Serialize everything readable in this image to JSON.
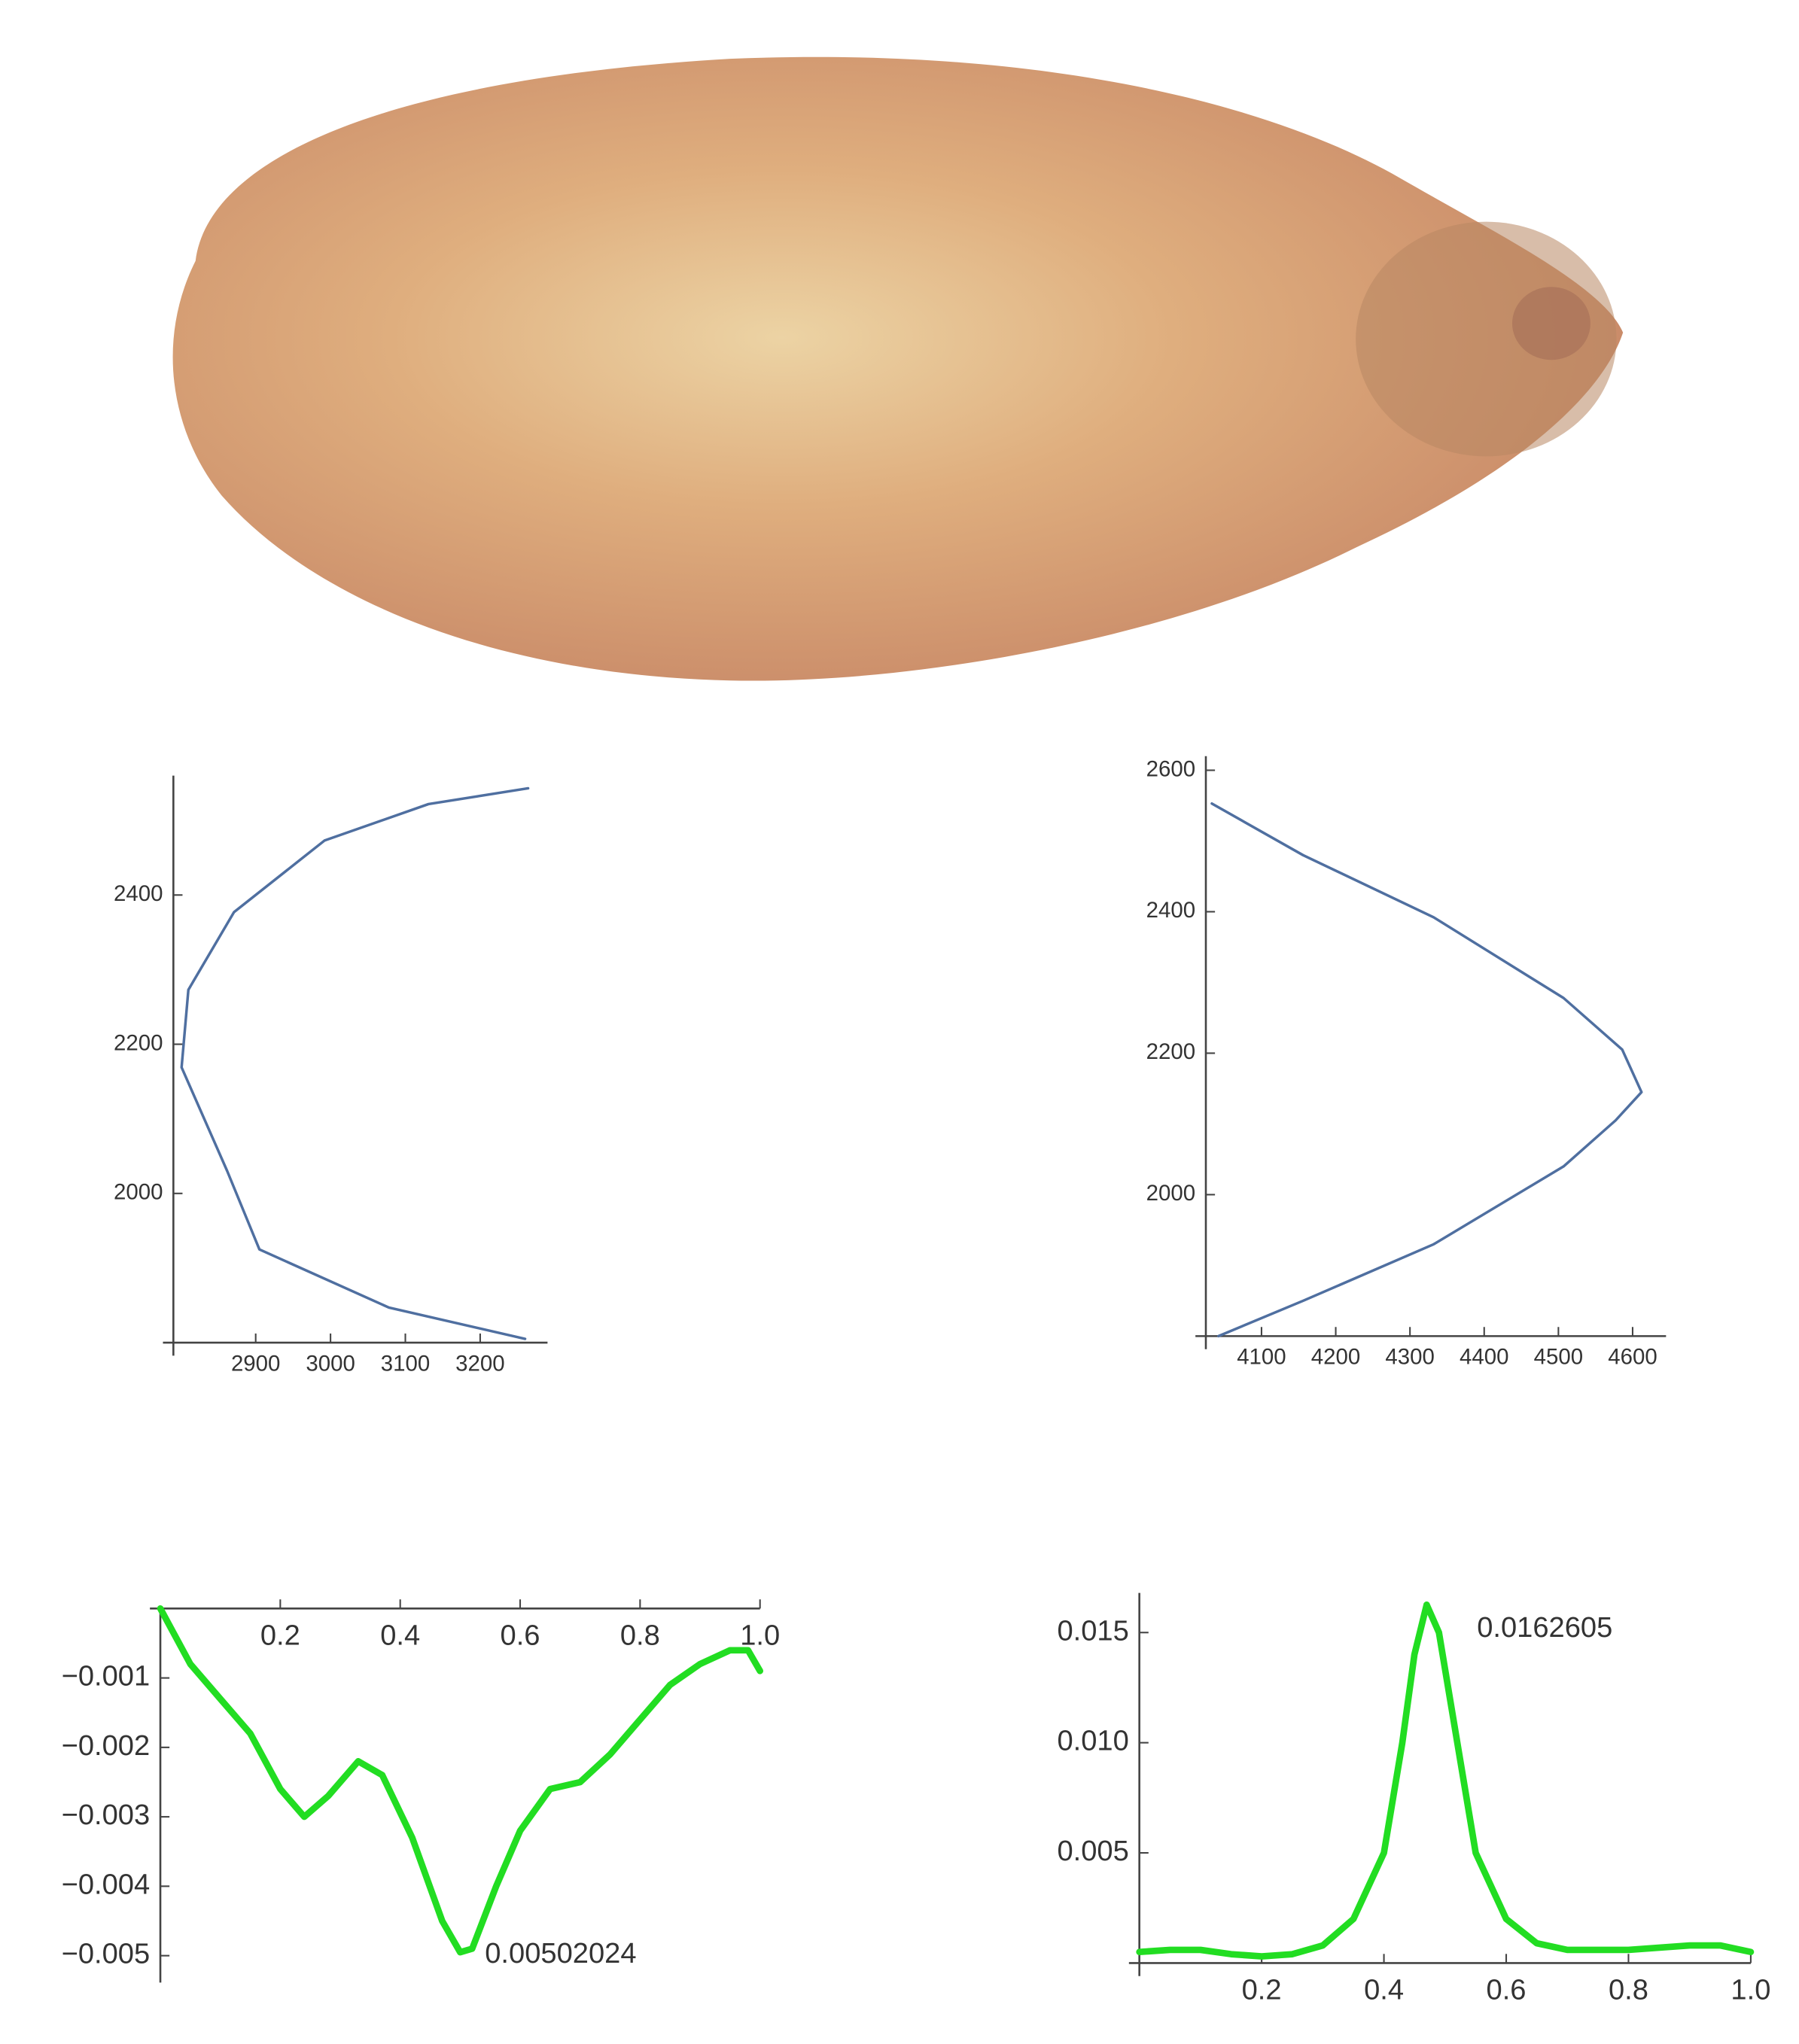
{
  "chart_data": [
    {
      "type": "line",
      "x": [
        3260,
        3078,
        2905,
        2862,
        2801,
        2810,
        2871,
        2992,
        3131,
        3264
      ],
      "series": [
        {
          "color": "#4f6fa0",
          "values": [
            1805,
            1847,
            1925,
            2030,
            2169,
            2273,
            2377,
            2473,
            2522,
            2543
          ]
        }
      ],
      "xlim": [
        2790,
        3290
      ],
      "ylim": [
        1800,
        2560
      ],
      "xticks": [
        2900,
        3000,
        3100,
        3200
      ],
      "yticks": [
        2000,
        2200,
        2400
      ]
    },
    {
      "type": "line",
      "x": [
        4042,
        4156,
        4332,
        4507,
        4577,
        4612,
        4586,
        4507,
        4332,
        4156,
        4033
      ],
      "series": [
        {
          "color": "#4f6fa0",
          "values": [
            1800,
            1850,
            1930,
            2040,
            2105,
            2145,
            2205,
            2278,
            2392,
            2480,
            2553
          ]
        }
      ],
      "xlim": [
        4025,
        4645
      ],
      "ylim": [
        1800,
        2620
      ],
      "xticks": [
        4100,
        4200,
        4300,
        4400,
        4500,
        4600
      ],
      "yticks": [
        2000,
        2200,
        2400,
        2600
      ]
    },
    {
      "type": "line",
      "x": [
        0,
        0.05,
        0.1,
        0.15,
        0.2,
        0.24,
        0.28,
        0.33,
        0.37,
        0.42,
        0.47,
        0.5,
        0.52,
        0.56,
        0.6,
        0.65,
        0.7,
        0.75,
        0.8,
        0.85,
        0.9,
        0.95,
        0.98,
        1.0
      ],
      "series": [
        {
          "color": "#22dd22",
          "values": [
            0,
            -0.0008,
            -0.0013,
            -0.0018,
            -0.0026,
            -0.003,
            -0.0027,
            -0.0022,
            -0.0024,
            -0.0033,
            -0.0045,
            -0.00495,
            -0.0049,
            -0.004,
            -0.0032,
            -0.0026,
            -0.0025,
            -0.0021,
            -0.0016,
            -0.0011,
            -0.0008,
            -0.0006,
            -0.0006,
            -0.0009
          ]
        }
      ],
      "annotation": "0.00502024",
      "xlim": [
        0,
        1
      ],
      "ylim": [
        -0.0052,
        0
      ],
      "xticks": [
        0.2,
        0.4,
        0.6,
        0.8,
        {
          "value": 1,
          "label": "1.0"
        }
      ],
      "yticks": [
        {
          "value": -0.001,
          "label": "−0.001"
        },
        {
          "value": -0.002,
          "label": "−0.002"
        },
        {
          "value": -0.003,
          "label": "−0.003"
        },
        {
          "value": -0.004,
          "label": "−0.004"
        },
        {
          "value": -0.005,
          "label": "−0.005"
        }
      ]
    },
    {
      "type": "line",
      "x": [
        0,
        0.05,
        0.1,
        0.15,
        0.2,
        0.25,
        0.3,
        0.35,
        0.4,
        0.43,
        0.45,
        0.47,
        0.49,
        0.52,
        0.55,
        0.6,
        0.65,
        0.7,
        0.8,
        0.9,
        0.95,
        1.0
      ],
      "series": [
        {
          "color": "#22dd22",
          "values": [
            0.0005,
            0.0006,
            0.0006,
            0.0004,
            0.0003,
            0.0004,
            0.0008,
            0.002,
            0.005,
            0.01,
            0.014,
            0.0162605,
            0.015,
            0.01,
            0.005,
            0.002,
            0.0009,
            0.0006,
            0.0006,
            0.0008,
            0.0008,
            0.0005
          ]
        }
      ],
      "annotation": "0.0162605",
      "xlim": [
        0,
        1
      ],
      "ylim": [
        0,
        0.0168
      ],
      "xticks": [
        0.2,
        0.4,
        0.6,
        0.8,
        {
          "value": 1,
          "label": "1.0"
        }
      ],
      "yticks": [
        0.005,
        {
          "value": 0.01,
          "label": "0.010"
        },
        0.015
      ]
    }
  ]
}
